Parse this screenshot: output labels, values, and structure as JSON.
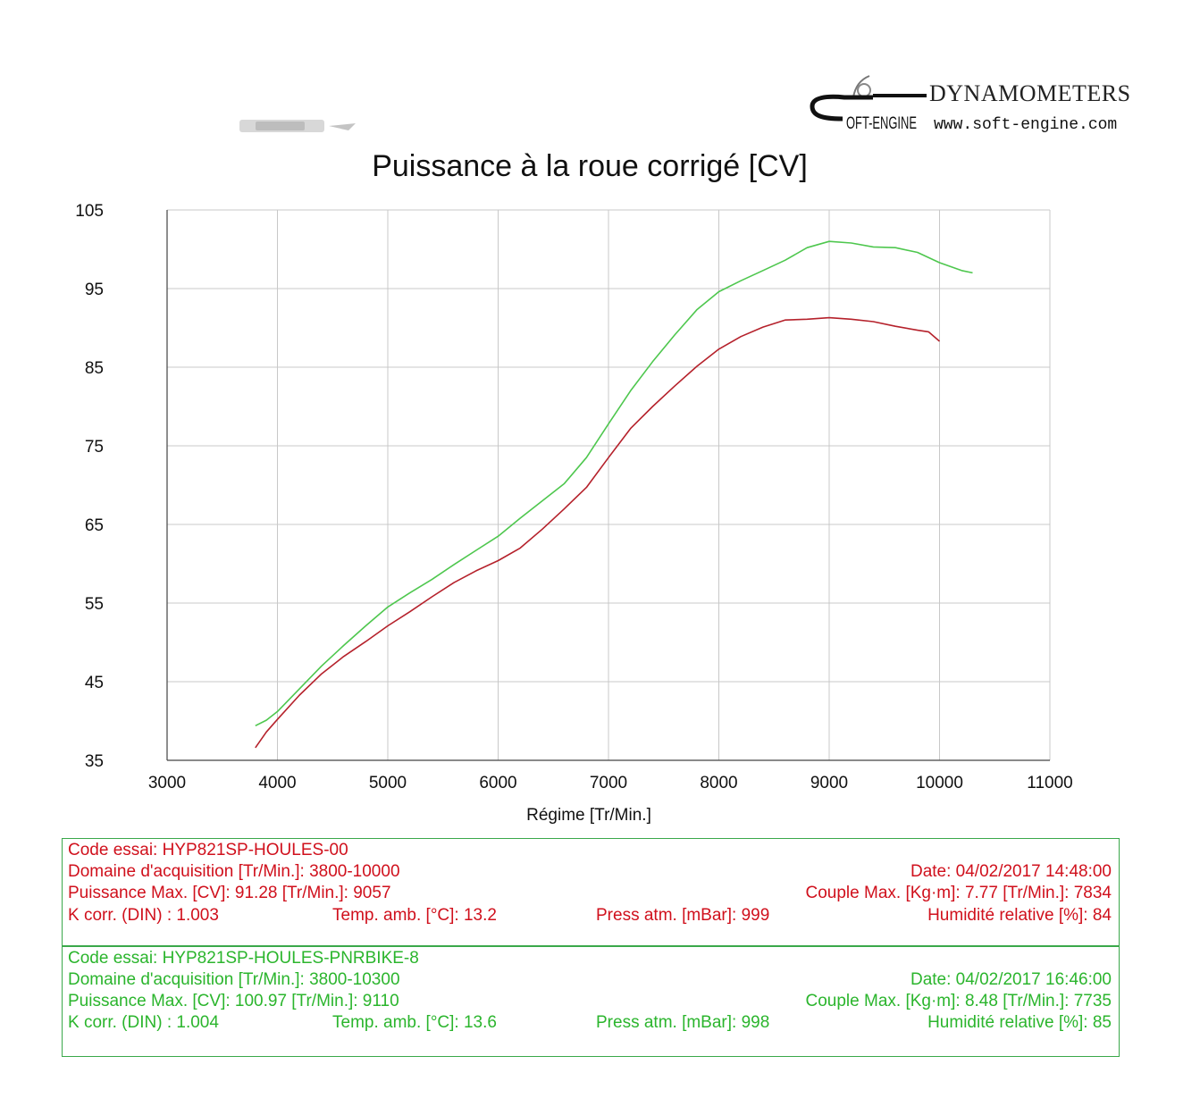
{
  "brand": {
    "name": "DYNAMOMETERS",
    "logo_text": "OFT-ENGINE",
    "url": "www.soft-engine.com",
    "logo_icon": "soft-engine-logo"
  },
  "colors": {
    "series1": "#b5212b",
    "series2": "#4ec74e",
    "panel1_text": "#d0101c",
    "panel2_text": "#2bb52d",
    "grid": "#c8c8c8"
  },
  "chart_data": {
    "type": "line",
    "title": "Puissance à la roue corrigé [CV]",
    "xlabel": "Régime [Tr/Min.]",
    "ylabel": "",
    "xlim": [
      3000,
      11000
    ],
    "ylim": [
      35,
      105
    ],
    "x_ticks": [
      3000,
      4000,
      5000,
      6000,
      7000,
      8000,
      9000,
      10000,
      11000
    ],
    "y_ticks": [
      35,
      45,
      55,
      65,
      75,
      85,
      95,
      105
    ],
    "grid": true,
    "legend": "none",
    "series": [
      {
        "color": "#b5212b",
        "points": [
          [
            3800,
            36.6
          ],
          [
            3900,
            38.6
          ],
          [
            4000,
            40.2
          ],
          [
            4200,
            43.3
          ],
          [
            4400,
            46.0
          ],
          [
            4600,
            48.2
          ],
          [
            4800,
            50.1
          ],
          [
            5000,
            52.1
          ],
          [
            5200,
            53.9
          ],
          [
            5400,
            55.8
          ],
          [
            5600,
            57.6
          ],
          [
            5800,
            59.1
          ],
          [
            6000,
            60.4
          ],
          [
            6200,
            62.0
          ],
          [
            6400,
            64.4
          ],
          [
            6600,
            67.0
          ],
          [
            6800,
            69.7
          ],
          [
            7000,
            73.5
          ],
          [
            7200,
            77.2
          ],
          [
            7400,
            80.0
          ],
          [
            7600,
            82.6
          ],
          [
            7800,
            85.1
          ],
          [
            8000,
            87.3
          ],
          [
            8200,
            88.9
          ],
          [
            8400,
            90.1
          ],
          [
            8600,
            91.0
          ],
          [
            8800,
            91.1
          ],
          [
            9000,
            91.3
          ],
          [
            9200,
            91.1
          ],
          [
            9400,
            90.8
          ],
          [
            9600,
            90.2
          ],
          [
            9800,
            89.7
          ],
          [
            9900,
            89.5
          ],
          [
            10000,
            88.3
          ]
        ]
      },
      {
        "color": "#4ec74e",
        "points": [
          [
            3800,
            39.4
          ],
          [
            3900,
            40.1
          ],
          [
            4000,
            41.2
          ],
          [
            4200,
            44.1
          ],
          [
            4400,
            47.0
          ],
          [
            4600,
            49.6
          ],
          [
            4800,
            52.1
          ],
          [
            5000,
            54.5
          ],
          [
            5200,
            56.3
          ],
          [
            5400,
            58.0
          ],
          [
            5600,
            59.9
          ],
          [
            5800,
            61.7
          ],
          [
            6000,
            63.5
          ],
          [
            6200,
            65.8
          ],
          [
            6400,
            68.0
          ],
          [
            6600,
            70.2
          ],
          [
            6800,
            73.5
          ],
          [
            7000,
            77.8
          ],
          [
            7200,
            82.0
          ],
          [
            7400,
            85.7
          ],
          [
            7600,
            89.1
          ],
          [
            7800,
            92.3
          ],
          [
            8000,
            94.6
          ],
          [
            8200,
            96.0
          ],
          [
            8400,
            97.3
          ],
          [
            8600,
            98.6
          ],
          [
            8800,
            100.2
          ],
          [
            9000,
            101.0
          ],
          [
            9200,
            100.8
          ],
          [
            9400,
            100.3
          ],
          [
            9600,
            100.2
          ],
          [
            9800,
            99.6
          ],
          [
            10000,
            98.3
          ],
          [
            10200,
            97.3
          ],
          [
            10300,
            97.0
          ]
        ]
      }
    ]
  },
  "panel1": {
    "row1": "Code essai: HYP821SP-HOULES-00",
    "row2_left": "Domaine d'acquisition [Tr/Min.]: 3800-10000",
    "row2_right": "Date: 04/02/2017   14:48:00",
    "row3_left": "Puissance Max. [CV]: 91.28   [Tr/Min.]: 9057",
    "row3_right": "Couple Max. [Kg·m]: 7.77   [Tr/Min.]: 7834",
    "row4_a": "K corr. (DIN) : 1.003",
    "row4_b": "Temp. amb. [°C]: 13.2",
    "row4_c": "Press atm. [mBar]: 999",
    "row4_d": "Humidité relative [%]: 84"
  },
  "panel2": {
    "row1": "Code essai: HYP821SP-HOULES-PNRBIKE-8",
    "row2_left": "Domaine d'acquisition [Tr/Min.]: 3800-10300",
    "row2_right": "Date: 04/02/2017   16:46:00",
    "row3_left": "Puissance Max. [CV]: 100.97   [Tr/Min.]: 9110",
    "row3_right": "Couple Max. [Kg·m]: 8.48   [Tr/Min.]: 7735",
    "row4_a": "K corr. (DIN) : 1.004",
    "row4_b": "Temp. amb. [°C]: 13.6",
    "row4_c": "Press atm. [mBar]: 998",
    "row4_d": "Humidité relative [%]: 85"
  }
}
